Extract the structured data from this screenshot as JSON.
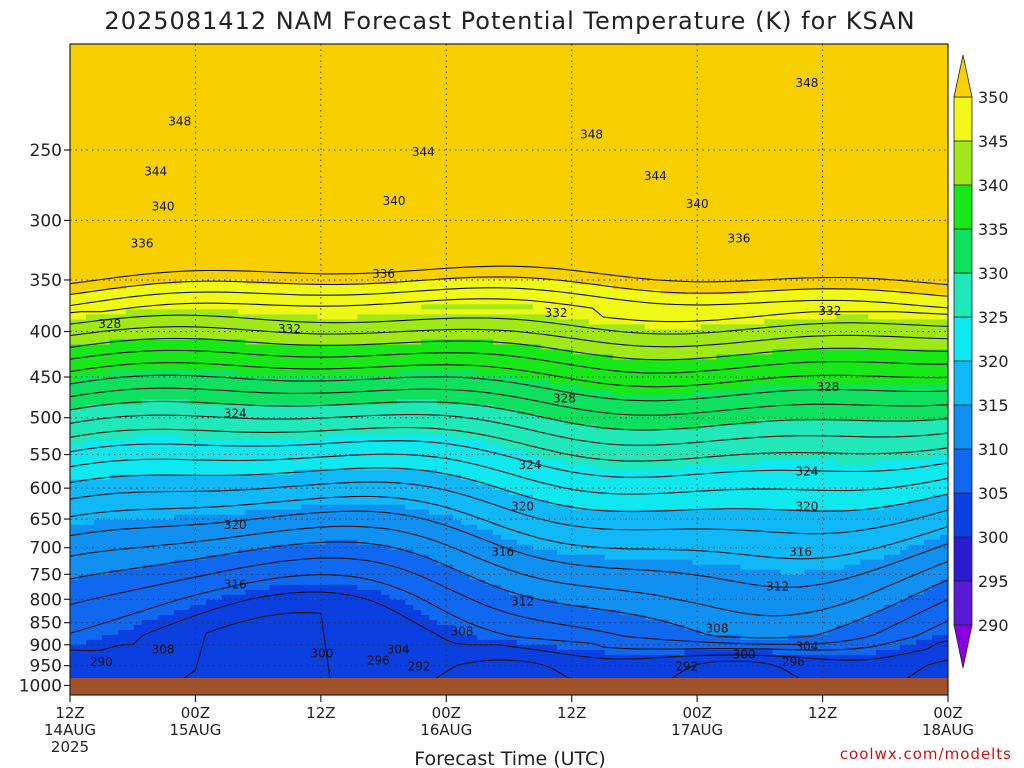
{
  "chart_data": {
    "type": "heatmap",
    "title": "2025081412 NAM Forecast Potential Temperature (K) for KSAN",
    "xlabel": "Forecast Time (UTC)",
    "ylabel": "",
    "units": "K",
    "x_ticks": [
      {
        "line1": "12Z",
        "line2": "14AUG",
        "line3": "2025",
        "hours": 0
      },
      {
        "line1": "00Z",
        "line2": "15AUG",
        "line3": "",
        "hours": 12
      },
      {
        "line1": "12Z",
        "line2": "",
        "line3": "",
        "hours": 24
      },
      {
        "line1": "00Z",
        "line2": "16AUG",
        "line3": "",
        "hours": 36
      },
      {
        "line1": "12Z",
        "line2": "",
        "line3": "",
        "hours": 48
      },
      {
        "line1": "00Z",
        "line2": "17AUG",
        "line3": "",
        "hours": 60
      },
      {
        "line1": "12Z",
        "line2": "",
        "line3": "",
        "hours": 72
      },
      {
        "line1": "00Z",
        "line2": "18AUG",
        "line3": "",
        "hours": 84
      }
    ],
    "xlim_hours": [
      0,
      84
    ],
    "y_axis": {
      "name": "pressure",
      "units": "hPa",
      "scale": "log",
      "inverted": true,
      "ylim": [
        1025,
        190
      ],
      "ticks": [
        250,
        300,
        350,
        400,
        450,
        500,
        550,
        600,
        650,
        700,
        750,
        800,
        850,
        900,
        950,
        1000
      ]
    },
    "colorbar": {
      "levels": [
        290,
        295,
        300,
        305,
        310,
        315,
        320,
        325,
        330,
        335,
        340,
        345,
        350
      ],
      "tick_labels": [
        "290",
        "295",
        "300",
        "305",
        "310",
        "315",
        "320",
        "325",
        "330",
        "335",
        "340",
        "345",
        "350"
      ],
      "colors": [
        "#8a00e0",
        "#5a1ad8",
        "#2a1ad0",
        "#0b3fe0",
        "#1068f0",
        "#1090f0",
        "#10b8f8",
        "#10e8f0",
        "#20e8b8",
        "#10e060",
        "#18e818",
        "#a0e818",
        "#f0f818",
        "#f8d000"
      ],
      "extend": "both"
    },
    "contour_interval": 2,
    "contour_labels": [
      {
        "value": 348,
        "hours": 10.5,
        "p": 232
      },
      {
        "value": 348,
        "hours": 49.9,
        "p": 240
      },
      {
        "value": 348,
        "hours": 70.5,
        "p": 210
      },
      {
        "value": 344,
        "hours": 33.8,
        "p": 251
      },
      {
        "value": 344,
        "hours": 8.2,
        "p": 264
      },
      {
        "value": 344,
        "hours": 56,
        "p": 267
      },
      {
        "value": 340,
        "hours": 8.9,
        "p": 289
      },
      {
        "value": 340,
        "hours": 31,
        "p": 285
      },
      {
        "value": 340,
        "hours": 60,
        "p": 287
      },
      {
        "value": 336,
        "hours": 6.9,
        "p": 318
      },
      {
        "value": 336,
        "hours": 30,
        "p": 344
      },
      {
        "value": 336,
        "hours": 64,
        "p": 314
      },
      {
        "value": 332,
        "hours": 21,
        "p": 397
      },
      {
        "value": 332,
        "hours": 46.5,
        "p": 381
      },
      {
        "value": 332,
        "hours": 72.7,
        "p": 379
      },
      {
        "value": 328,
        "hours": 3.8,
        "p": 392
      },
      {
        "value": 328,
        "hours": 47.3,
        "p": 475
      },
      {
        "value": 328,
        "hours": 72.5,
        "p": 461
      },
      {
        "value": 324,
        "hours": 15.8,
        "p": 494
      },
      {
        "value": 324,
        "hours": 44,
        "p": 564
      },
      {
        "value": 324,
        "hours": 70.5,
        "p": 574
      },
      {
        "value": 320,
        "hours": 15.8,
        "p": 659
      },
      {
        "value": 320,
        "hours": 43.3,
        "p": 628
      },
      {
        "value": 320,
        "hours": 70.5,
        "p": 628
      },
      {
        "value": 316,
        "hours": 15.8,
        "p": 769
      },
      {
        "value": 316,
        "hours": 41.4,
        "p": 707
      },
      {
        "value": 316,
        "hours": 69.9,
        "p": 707
      },
      {
        "value": 312,
        "hours": 43.3,
        "p": 804
      },
      {
        "value": 312,
        "hours": 67.7,
        "p": 773
      },
      {
        "value": 308,
        "hours": 37.5,
        "p": 869
      },
      {
        "value": 308,
        "hours": 61.9,
        "p": 862
      },
      {
        "value": 308,
        "hours": 8.9,
        "p": 910
      },
      {
        "value": 304,
        "hours": 31.4,
        "p": 910
      },
      {
        "value": 304,
        "hours": 70.5,
        "p": 903
      },
      {
        "value": 300,
        "hours": 24.1,
        "p": 919
      },
      {
        "value": 300,
        "hours": 64.5,
        "p": 922
      },
      {
        "value": 296,
        "hours": 29.5,
        "p": 936
      },
      {
        "value": 296,
        "hours": 69.2,
        "p": 940
      },
      {
        "value": 292,
        "hours": 33.4,
        "p": 951
      },
      {
        "value": 292,
        "hours": 59,
        "p": 951
      },
      {
        "value": 290,
        "hours": 3,
        "p": 940
      }
    ]
  },
  "credit": "coolwx.com/modelts"
}
